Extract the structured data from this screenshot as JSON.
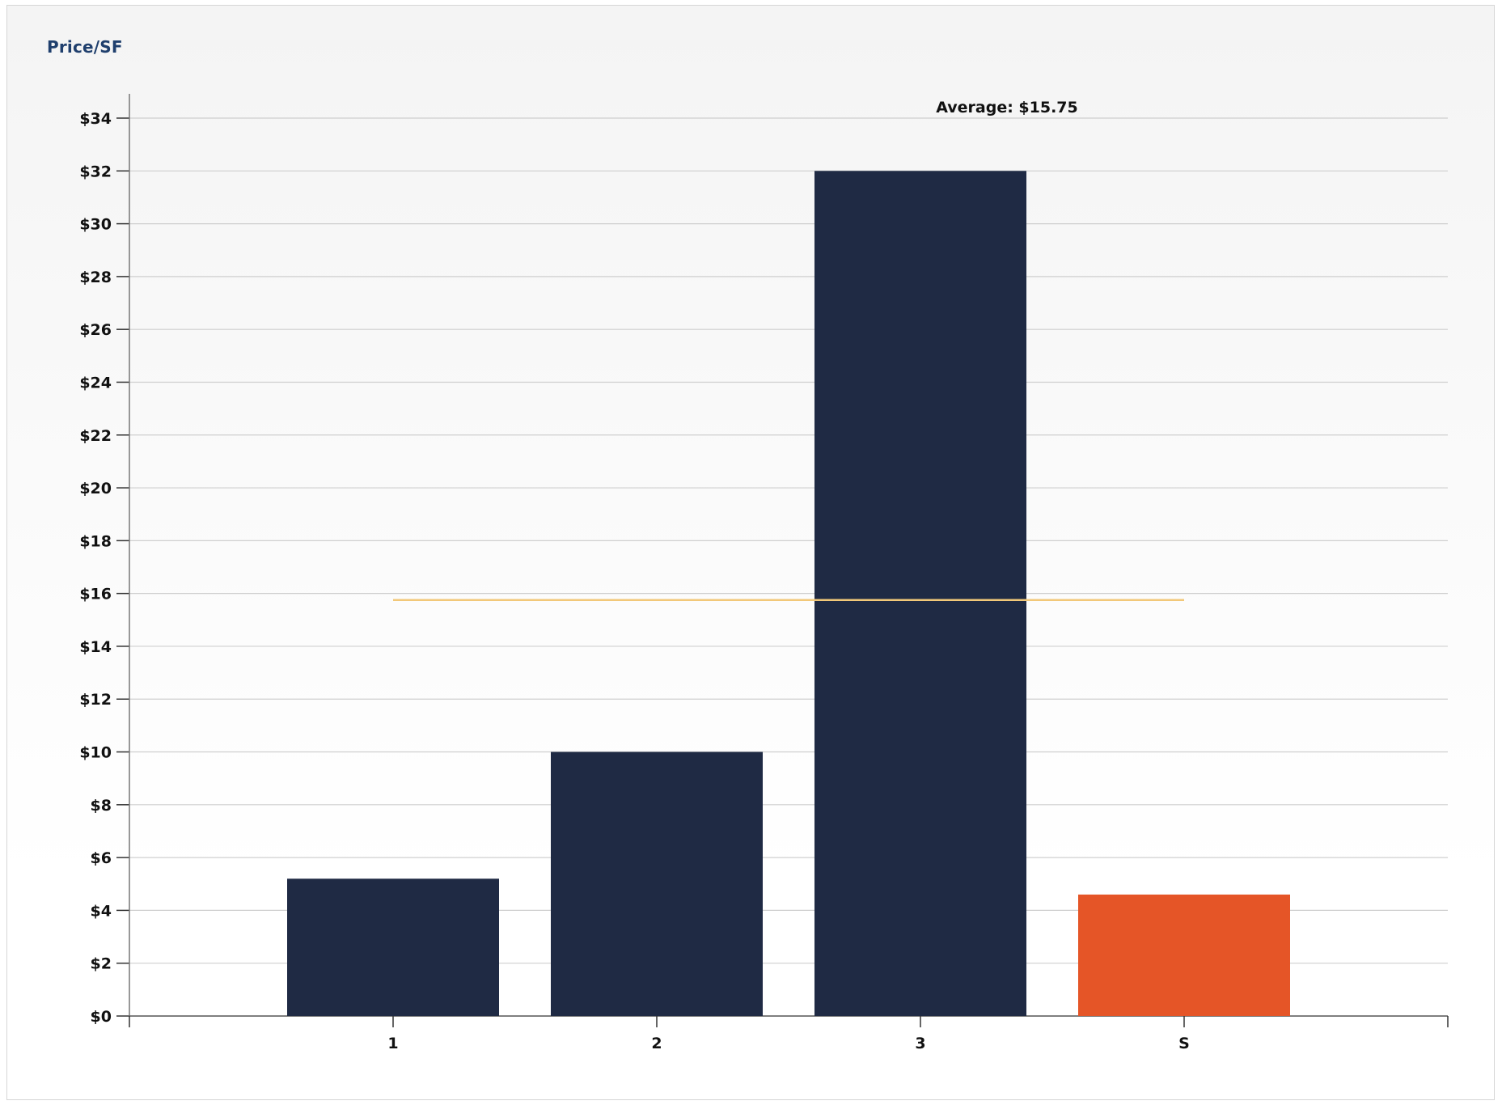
{
  "chart_data": {
    "type": "bar",
    "title": "Price/SF",
    "categories": [
      "1",
      "2",
      "3",
      "S"
    ],
    "values": [
      5.2,
      10.0,
      32.0,
      4.6
    ],
    "bar_colors": [
      "#1f2a44",
      "#1f2a44",
      "#1f2a44",
      "#e55527"
    ],
    "ylim": [
      0,
      34
    ],
    "y_tick_step": 2,
    "y_tick_labels": [
      "$0",
      "$2",
      "$4",
      "$6",
      "$8",
      "$10",
      "$12",
      "$14",
      "$16",
      "$18",
      "$20",
      "$22",
      "$24",
      "$26",
      "$28",
      "$30",
      "$32",
      "$34"
    ],
    "grid": true,
    "average": {
      "value": 15.75,
      "label": "Average: $15.75",
      "color": "#f2c879"
    },
    "xlabel": "",
    "ylabel": ""
  }
}
